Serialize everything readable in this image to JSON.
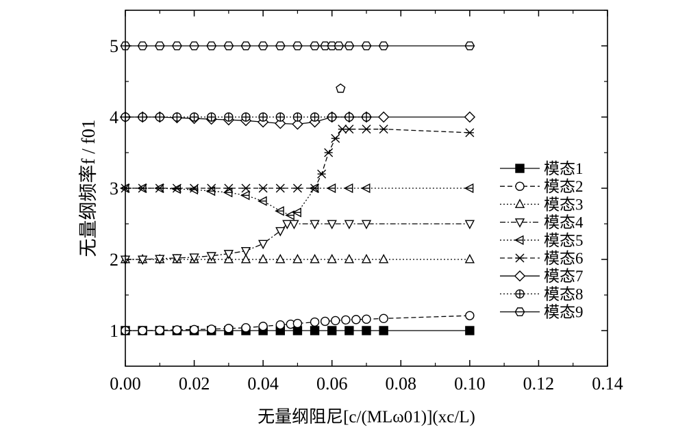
{
  "chart_data": {
    "type": "line",
    "xlabel": "无量纲阻尼[c/(MLω01)](xc/L)",
    "ylabel": "无量纲频率f / f01",
    "xlim": [
      0,
      0.14
    ],
    "ylim": [
      0.5,
      5.5
    ],
    "xticks": [
      "0.00",
      "0.02",
      "0.04",
      "0.06",
      "0.08",
      "0.10",
      "0.12",
      "0.14"
    ],
    "xtick_values": [
      0,
      0.02,
      0.04,
      0.06,
      0.08,
      0.1,
      0.12,
      0.14
    ],
    "yticks": [
      "1",
      "2",
      "3",
      "4",
      "5"
    ],
    "ytick_values": [
      1,
      2,
      3,
      4,
      5
    ],
    "legend_position": "right",
    "grid": false,
    "series": [
      {
        "name": "模态1",
        "marker": "square-filled",
        "dash": "solid",
        "x": [
          0,
          0.005,
          0.01,
          0.015,
          0.02,
          0.025,
          0.03,
          0.035,
          0.04,
          0.045,
          0.05,
          0.055,
          0.06,
          0.065,
          0.07,
          0.075,
          0.1
        ],
        "y": [
          1,
          1,
          1,
          1,
          1,
          1,
          1,
          1,
          1,
          1,
          1,
          1,
          1,
          1,
          1,
          1,
          1
        ]
      },
      {
        "name": "模态2",
        "marker": "circle-open",
        "dash": "dashed",
        "x": [
          0,
          0.005,
          0.01,
          0.015,
          0.02,
          0.025,
          0.03,
          0.035,
          0.04,
          0.045,
          0.048,
          0.05,
          0.055,
          0.058,
          0.061,
          0.064,
          0.067,
          0.07,
          0.075,
          0.1
        ],
        "y": [
          1,
          1,
          1.005,
          1.01,
          1.015,
          1.02,
          1.03,
          1.04,
          1.06,
          1.08,
          1.09,
          1.1,
          1.12,
          1.13,
          1.14,
          1.15,
          1.155,
          1.16,
          1.17,
          1.21
        ]
      },
      {
        "name": "模态3",
        "marker": "triangle-up-open",
        "dash": "dotted",
        "x": [
          0,
          0.005,
          0.01,
          0.015,
          0.02,
          0.025,
          0.03,
          0.035,
          0.04,
          0.045,
          0.05,
          0.055,
          0.06,
          0.065,
          0.07,
          0.075,
          0.1
        ],
        "y": [
          2,
          2,
          2,
          2,
          2,
          2,
          2,
          2,
          2,
          2,
          2,
          2,
          2,
          2,
          2,
          2,
          2
        ]
      },
      {
        "name": "模态4",
        "marker": "triangle-down-open",
        "dash": "dashdot",
        "x": [
          0,
          0.005,
          0.01,
          0.015,
          0.02,
          0.025,
          0.03,
          0.035,
          0.04,
          0.045,
          0.047,
          0.049,
          0.055,
          0.06,
          0.065,
          0.07,
          0.1
        ],
        "y": [
          2,
          2,
          2.01,
          2.02,
          2.03,
          2.05,
          2.08,
          2.12,
          2.22,
          2.4,
          2.5,
          2.5,
          2.5,
          2.5,
          2.5,
          2.5,
          2.5
        ]
      },
      {
        "name": "模态5",
        "marker": "tri-left",
        "dash": "dotted",
        "x": [
          0,
          0.005,
          0.01,
          0.015,
          0.02,
          0.025,
          0.03,
          0.035,
          0.04,
          0.045,
          0.048,
          0.05,
          0.055,
          0.06,
          0.065,
          0.07,
          0.1
        ],
        "y": [
          3,
          3,
          3,
          2.99,
          2.98,
          2.96,
          2.94,
          2.9,
          2.82,
          2.68,
          2.62,
          2.66,
          3,
          3,
          3,
          3,
          3
        ]
      },
      {
        "name": "模态6",
        "marker": "x-star",
        "dash": "dashed",
        "x": [
          0,
          0.005,
          0.01,
          0.015,
          0.02,
          0.025,
          0.03,
          0.035,
          0.04,
          0.045,
          0.05,
          0.055,
          0.057,
          0.059,
          0.061,
          0.063,
          0.065,
          0.07,
          0.075,
          0.1
        ],
        "y": [
          3,
          3,
          3,
          3,
          3,
          3,
          3,
          3,
          3,
          3,
          3,
          3,
          3.2,
          3.5,
          3.7,
          3.83,
          3.83,
          3.83,
          3.83,
          3.78
        ]
      },
      {
        "name": "模态7",
        "marker": "diamond-open",
        "dash": "solid",
        "x": [
          0,
          0.005,
          0.01,
          0.015,
          0.02,
          0.025,
          0.03,
          0.035,
          0.04,
          0.045,
          0.05,
          0.055,
          0.06,
          0.065,
          0.07,
          0.075,
          0.1
        ],
        "y": [
          4,
          4,
          4,
          3.99,
          3.98,
          3.97,
          3.96,
          3.95,
          3.93,
          3.91,
          3.9,
          3.93,
          4,
          4,
          4,
          4,
          4
        ]
      },
      {
        "name": "模态8",
        "marker": "circle-cross",
        "dash": "dotted",
        "x": [
          0,
          0.005,
          0.01,
          0.015,
          0.02,
          0.025,
          0.03,
          0.035,
          0.04,
          0.045,
          0.05,
          0.055,
          0.06,
          0.065,
          0.07
        ],
        "y": [
          4,
          4,
          4,
          4,
          4,
          4,
          4,
          4,
          4,
          4,
          4,
          4,
          4,
          4,
          4
        ]
      },
      {
        "name": "模态9",
        "marker": "hexagon-half",
        "dash": "solid",
        "x": [
          0,
          0.005,
          0.01,
          0.015,
          0.02,
          0.025,
          0.03,
          0.035,
          0.04,
          0.045,
          0.05,
          0.055,
          0.058,
          0.06,
          0.062,
          0.065,
          0.07,
          0.075,
          0.1
        ],
        "y": [
          5,
          5,
          5,
          5,
          5,
          5,
          5,
          5,
          5,
          5,
          5,
          5,
          5,
          5,
          5,
          5,
          5,
          5,
          5
        ]
      }
    ],
    "annotations": [
      {
        "marker": "pentagon-open",
        "x": 0.0625,
        "y": 4.4
      }
    ]
  }
}
